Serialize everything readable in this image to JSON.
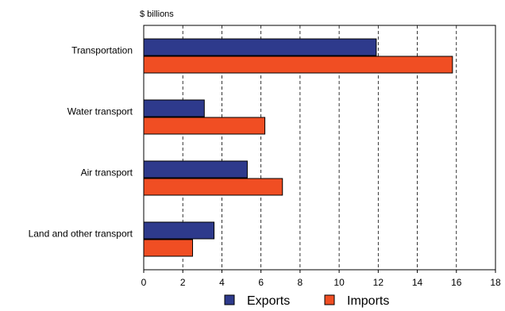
{
  "chart_data": {
    "type": "bar",
    "orientation": "horizontal",
    "unit_label": "$ billions",
    "categories": [
      "Transportation",
      "Water transport",
      "Air transport",
      "Land and other transport"
    ],
    "series": [
      {
        "name": "Exports",
        "color": "#2E3A8C",
        "values": [
          11.9,
          3.1,
          5.3,
          3.6
        ]
      },
      {
        "name": "Imports",
        "color": "#F04E23",
        "values": [
          15.8,
          6.2,
          7.1,
          2.5
        ]
      }
    ],
    "xlim": [
      0,
      18
    ],
    "xticks": [
      0,
      2,
      4,
      6,
      8,
      10,
      12,
      14,
      16,
      18
    ],
    "grid": "vertical dashed",
    "legend_position": "bottom"
  }
}
